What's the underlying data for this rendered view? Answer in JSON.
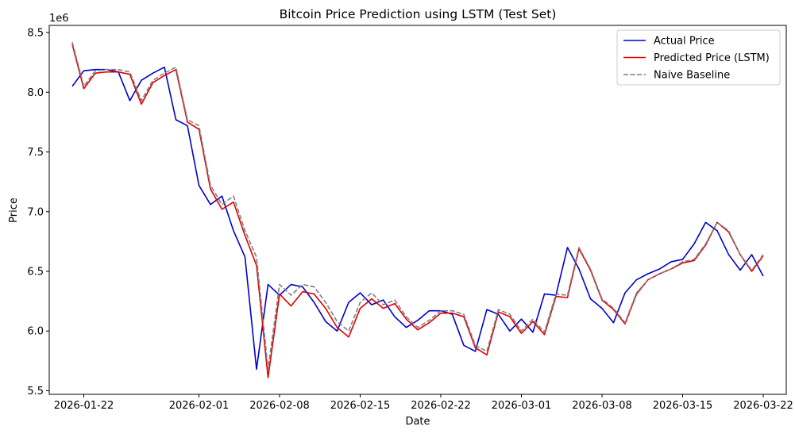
{
  "chart_data": {
    "type": "line",
    "title": "Bitcoin Price Prediction using LSTM (Test Set)",
    "xlabel": "Date",
    "ylabel": "Price",
    "y_offset_label": "1e6",
    "start_date": "2026-01-21",
    "x_ticks": [
      "2026-01-22",
      "2026-02-01",
      "2026-02-08",
      "2026-02-15",
      "2026-02-22",
      "2026-03-01",
      "2026-03-08",
      "2026-03-15",
      "2026-03-22"
    ],
    "y_ticks": [
      "5.5",
      "6.0",
      "6.5",
      "7.0",
      "7.5",
      "8.0",
      "8.5"
    ],
    "xlim": [
      "2026-01-19",
      "2026-03-24"
    ],
    "ylim": [
      5.47,
      8.56
    ],
    "grid": false,
    "legend_position": "top-right",
    "series": [
      {
        "name": "Actual Price",
        "color": "#0000cd",
        "style": "solid",
        "values": [
          8.05,
          8.18,
          8.19,
          8.19,
          8.17,
          7.93,
          8.1,
          8.16,
          8.21,
          7.77,
          7.72,
          7.22,
          7.06,
          7.13,
          6.84,
          6.62,
          5.68,
          6.39,
          6.3,
          6.39,
          6.37,
          6.24,
          6.08,
          6.0,
          6.24,
          6.32,
          6.22,
          6.26,
          6.12,
          6.03,
          6.09,
          6.17,
          6.17,
          6.14,
          5.88,
          5.83,
          6.18,
          6.14,
          6.0,
          6.1,
          5.99,
          6.31,
          6.3,
          6.7,
          6.52,
          6.27,
          6.19,
          6.07,
          6.32,
          6.43,
          6.48,
          6.52,
          6.58,
          6.6,
          6.73,
          6.91,
          6.84,
          6.64,
          6.51,
          6.64,
          6.46
        ]
      },
      {
        "name": "Predicted Price (LSTM)",
        "color": "#e00000",
        "style": "solid",
        "values": [
          8.4,
          8.03,
          8.16,
          8.17,
          8.17,
          8.15,
          7.9,
          8.08,
          8.14,
          8.19,
          7.75,
          7.69,
          7.19,
          7.02,
          7.08,
          6.8,
          6.55,
          5.61,
          6.31,
          6.21,
          6.33,
          6.31,
          6.19,
          6.03,
          5.95,
          6.19,
          6.27,
          6.19,
          6.23,
          6.1,
          6.01,
          6.07,
          6.15,
          6.15,
          6.12,
          5.86,
          5.8,
          6.16,
          6.12,
          5.98,
          6.08,
          5.97,
          6.29,
          6.28,
          6.69,
          6.51,
          6.26,
          6.18,
          6.06,
          6.31,
          6.43,
          6.48,
          6.52,
          6.57,
          6.59,
          6.72,
          6.91,
          6.83,
          6.64,
          6.5,
          6.63
        ]
      },
      {
        "name": "Naive Baseline",
        "color": "#808080",
        "style": "dashed",
        "values": [
          8.42,
          8.05,
          8.18,
          8.19,
          8.19,
          8.17,
          7.93,
          8.1,
          8.16,
          8.21,
          7.77,
          7.72,
          7.22,
          7.06,
          7.13,
          6.84,
          6.62,
          5.68,
          6.39,
          6.3,
          6.39,
          6.37,
          6.24,
          6.08,
          6.0,
          6.24,
          6.32,
          6.22,
          6.26,
          6.12,
          6.03,
          6.09,
          6.17,
          6.17,
          6.14,
          5.88,
          5.83,
          6.18,
          6.14,
          6.0,
          6.1,
          5.99,
          6.31,
          6.3,
          6.7,
          6.52,
          6.27,
          6.19,
          6.07,
          6.32,
          6.43,
          6.48,
          6.52,
          6.58,
          6.6,
          6.73,
          6.91,
          6.84,
          6.64,
          6.51,
          6.64
        ]
      }
    ]
  }
}
